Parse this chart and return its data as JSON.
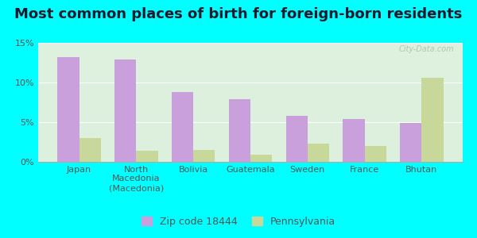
{
  "title": "Most common places of birth for foreign-born residents",
  "categories": [
    "Japan",
    "North\nMacedonia\n(Macedonia)",
    "Bolivia",
    "Guatemala",
    "Sweden",
    "France",
    "Bhutan"
  ],
  "zip_values": [
    13.2,
    12.9,
    8.8,
    7.9,
    5.8,
    5.4,
    4.9
  ],
  "pa_values": [
    3.0,
    1.4,
    1.5,
    0.9,
    2.3,
    2.0,
    10.6
  ],
  "zip_color": "#c9a0dc",
  "pa_color": "#c8d89a",
  "background_color": "#00ffff",
  "plot_bg_top": "#f5fdf5",
  "plot_bg_bottom": "#ddf0dd",
  "watermark": "City-Data.com",
  "legend_zip": "Zip code 18444",
  "legend_pa": "Pennsylvania",
  "ylim": [
    0,
    15
  ],
  "yticks": [
    0,
    5,
    10,
    15
  ],
  "ytick_labels": [
    "0%",
    "5%",
    "10%",
    "15%"
  ],
  "bar_width": 0.38,
  "title_fontsize": 13,
  "tick_fontsize": 8,
  "legend_fontsize": 9,
  "title_color": "#1a1a2e"
}
